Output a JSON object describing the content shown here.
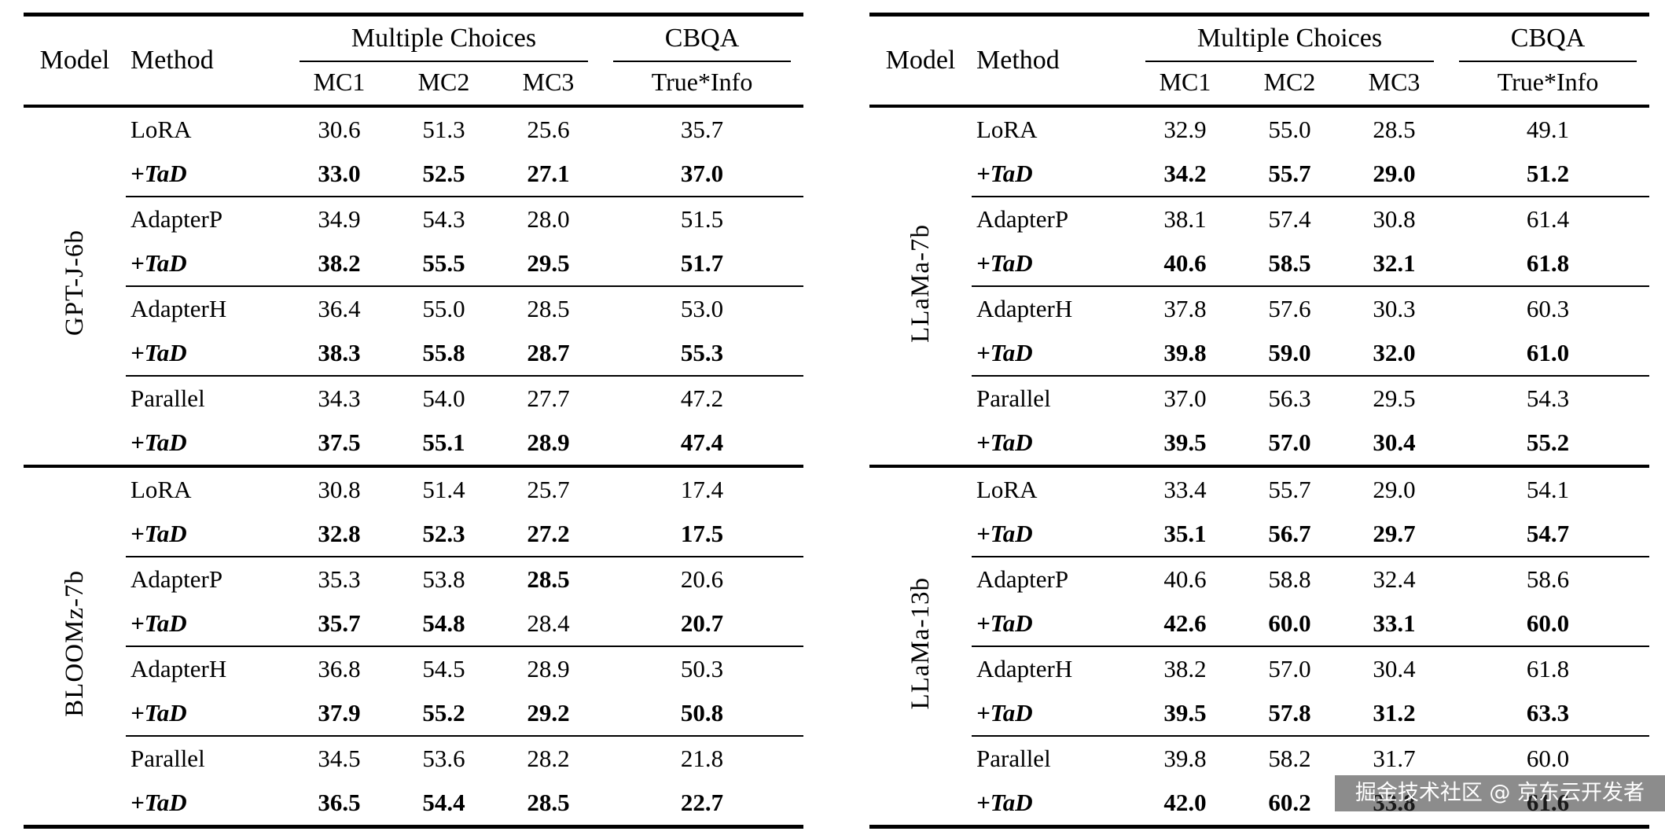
{
  "header": {
    "model": "Model",
    "method": "Method",
    "group_mc": "Multiple Choices",
    "group_cbqa": "CBQA",
    "cols": [
      "MC1",
      "MC2",
      "MC3",
      "True*Info"
    ]
  },
  "watermark": {
    "text": "掘金技术社区 @ 京东云开发者"
  },
  "tables": [
    {
      "groups": [
        {
          "model": "GPT-J-6b",
          "pairs": [
            {
              "base": {
                "method": "LoRA",
                "values": [
                  "30.6",
                  "51.3",
                  "25.6",
                  "35.7"
                ],
                "bold": [
                  0,
                  0,
                  0,
                  0
                ]
              },
              "tad": {
                "method": "+TaD",
                "values": [
                  "33.0",
                  "52.5",
                  "27.1",
                  "37.0"
                ],
                "bold": [
                  1,
                  1,
                  1,
                  1
                ]
              }
            },
            {
              "base": {
                "method": "AdapterP",
                "values": [
                  "34.9",
                  "54.3",
                  "28.0",
                  "51.5"
                ],
                "bold": [
                  0,
                  0,
                  0,
                  0
                ]
              },
              "tad": {
                "method": "+TaD",
                "values": [
                  "38.2",
                  "55.5",
                  "29.5",
                  "51.7"
                ],
                "bold": [
                  1,
                  1,
                  1,
                  1
                ]
              }
            },
            {
              "base": {
                "method": "AdapterH",
                "values": [
                  "36.4",
                  "55.0",
                  "28.5",
                  "53.0"
                ],
                "bold": [
                  0,
                  0,
                  0,
                  0
                ]
              },
              "tad": {
                "method": "+TaD",
                "values": [
                  "38.3",
                  "55.8",
                  "28.7",
                  "55.3"
                ],
                "bold": [
                  1,
                  1,
                  1,
                  1
                ]
              }
            },
            {
              "base": {
                "method": "Parallel",
                "values": [
                  "34.3",
                  "54.0",
                  "27.7",
                  "47.2"
                ],
                "bold": [
                  0,
                  0,
                  0,
                  0
                ]
              },
              "tad": {
                "method": "+TaD",
                "values": [
                  "37.5",
                  "55.1",
                  "28.9",
                  "47.4"
                ],
                "bold": [
                  1,
                  1,
                  1,
                  1
                ]
              }
            }
          ]
        },
        {
          "model": "BLOOMz-7b",
          "pairs": [
            {
              "base": {
                "method": "LoRA",
                "values": [
                  "30.8",
                  "51.4",
                  "25.7",
                  "17.4"
                ],
                "bold": [
                  0,
                  0,
                  0,
                  0
                ]
              },
              "tad": {
                "method": "+TaD",
                "values": [
                  "32.8",
                  "52.3",
                  "27.2",
                  "17.5"
                ],
                "bold": [
                  1,
                  1,
                  1,
                  1
                ]
              }
            },
            {
              "base": {
                "method": "AdapterP",
                "values": [
                  "35.3",
                  "53.8",
                  "28.5",
                  "20.6"
                ],
                "bold": [
                  0,
                  0,
                  1,
                  0
                ]
              },
              "tad": {
                "method": "+TaD",
                "values": [
                  "35.7",
                  "54.8",
                  "28.4",
                  "20.7"
                ],
                "bold": [
                  1,
                  1,
                  0,
                  1
                ]
              }
            },
            {
              "base": {
                "method": "AdapterH",
                "values": [
                  "36.8",
                  "54.5",
                  "28.9",
                  "50.3"
                ],
                "bold": [
                  0,
                  0,
                  0,
                  0
                ]
              },
              "tad": {
                "method": "+TaD",
                "values": [
                  "37.9",
                  "55.2",
                  "29.2",
                  "50.8"
                ],
                "bold": [
                  1,
                  1,
                  1,
                  1
                ]
              }
            },
            {
              "base": {
                "method": "Parallel",
                "values": [
                  "34.5",
                  "53.6",
                  "28.2",
                  "21.8"
                ],
                "bold": [
                  0,
                  0,
                  0,
                  0
                ]
              },
              "tad": {
                "method": "+TaD",
                "values": [
                  "36.5",
                  "54.4",
                  "28.5",
                  "22.7"
                ],
                "bold": [
                  1,
                  1,
                  1,
                  1
                ]
              }
            }
          ]
        }
      ]
    },
    {
      "groups": [
        {
          "model": "LLaMa-7b",
          "pairs": [
            {
              "base": {
                "method": "LoRA",
                "values": [
                  "32.9",
                  "55.0",
                  "28.5",
                  "49.1"
                ],
                "bold": [
                  0,
                  0,
                  0,
                  0
                ]
              },
              "tad": {
                "method": "+TaD",
                "values": [
                  "34.2",
                  "55.7",
                  "29.0",
                  "51.2"
                ],
                "bold": [
                  1,
                  1,
                  1,
                  1
                ]
              }
            },
            {
              "base": {
                "method": "AdapterP",
                "values": [
                  "38.1",
                  "57.4",
                  "30.8",
                  "61.4"
                ],
                "bold": [
                  0,
                  0,
                  0,
                  0
                ]
              },
              "tad": {
                "method": "+TaD",
                "values": [
                  "40.6",
                  "58.5",
                  "32.1",
                  "61.8"
                ],
                "bold": [
                  1,
                  1,
                  1,
                  1
                ]
              }
            },
            {
              "base": {
                "method": "AdapterH",
                "values": [
                  "37.8",
                  "57.6",
                  "30.3",
                  "60.3"
                ],
                "bold": [
                  0,
                  0,
                  0,
                  0
                ]
              },
              "tad": {
                "method": "+TaD",
                "values": [
                  "39.8",
                  "59.0",
                  "32.0",
                  "61.0"
                ],
                "bold": [
                  1,
                  1,
                  1,
                  1
                ]
              }
            },
            {
              "base": {
                "method": "Parallel",
                "values": [
                  "37.0",
                  "56.3",
                  "29.5",
                  "54.3"
                ],
                "bold": [
                  0,
                  0,
                  0,
                  0
                ]
              },
              "tad": {
                "method": "+TaD",
                "values": [
                  "39.5",
                  "57.0",
                  "30.4",
                  "55.2"
                ],
                "bold": [
                  1,
                  1,
                  1,
                  1
                ]
              }
            }
          ]
        },
        {
          "model": "LLaMa-13b",
          "pairs": [
            {
              "base": {
                "method": "LoRA",
                "values": [
                  "33.4",
                  "55.7",
                  "29.0",
                  "54.1"
                ],
                "bold": [
                  0,
                  0,
                  0,
                  0
                ]
              },
              "tad": {
                "method": "+TaD",
                "values": [
                  "35.1",
                  "56.7",
                  "29.7",
                  "54.7"
                ],
                "bold": [
                  1,
                  1,
                  1,
                  1
                ]
              }
            },
            {
              "base": {
                "method": "AdapterP",
                "values": [
                  "40.6",
                  "58.8",
                  "32.4",
                  "58.6"
                ],
                "bold": [
                  0,
                  0,
                  0,
                  0
                ]
              },
              "tad": {
                "method": "+TaD",
                "values": [
                  "42.6",
                  "60.0",
                  "33.1",
                  "60.0"
                ],
                "bold": [
                  1,
                  1,
                  1,
                  1
                ]
              }
            },
            {
              "base": {
                "method": "AdapterH",
                "values": [
                  "38.2",
                  "57.0",
                  "30.4",
                  "61.8"
                ],
                "bold": [
                  0,
                  0,
                  0,
                  0
                ]
              },
              "tad": {
                "method": "+TaD",
                "values": [
                  "39.5",
                  "57.8",
                  "31.2",
                  "63.3"
                ],
                "bold": [
                  1,
                  1,
                  1,
                  1
                ]
              }
            },
            {
              "base": {
                "method": "Parallel",
                "values": [
                  "39.8",
                  "58.2",
                  "31.7",
                  "60.0"
                ],
                "bold": [
                  0,
                  0,
                  0,
                  0
                ]
              },
              "tad": {
                "method": "+TaD",
                "values": [
                  "42.0",
                  "60.2",
                  "33.8",
                  "61.6"
                ],
                "bold": [
                  1,
                  1,
                  1,
                  1
                ]
              }
            }
          ]
        }
      ]
    }
  ]
}
